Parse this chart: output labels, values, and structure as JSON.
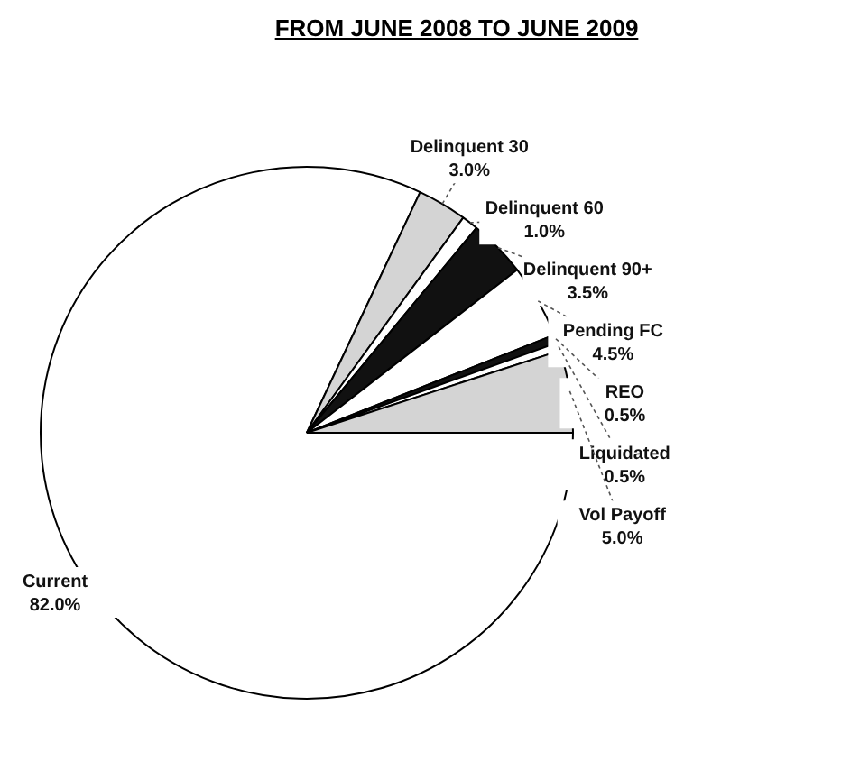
{
  "chart_data": {
    "type": "pie",
    "title": "FROM JUNE 2008 TO JUNE 2009",
    "categories": [
      "Current",
      "Delinquent 30",
      "Delinquent 60",
      "Delinquent 90+",
      "Pending FC",
      "REO",
      "Liquidated",
      "Vol Payoff"
    ],
    "values": [
      82.0,
      3.0,
      1.0,
      3.5,
      4.5,
      0.5,
      0.5,
      5.0
    ],
    "value_labels": [
      "82.0%",
      "3.0%",
      "1.0%",
      "3.5%",
      "4.5%",
      "0.5%",
      "0.5%",
      "5.0%"
    ],
    "colors": [
      "#ffffff",
      "#d4d4d4",
      "#ffffff",
      "#111111",
      "#ffffff",
      "#111111",
      "#ffffff",
      "#d4d4d4"
    ],
    "legend": false
  }
}
